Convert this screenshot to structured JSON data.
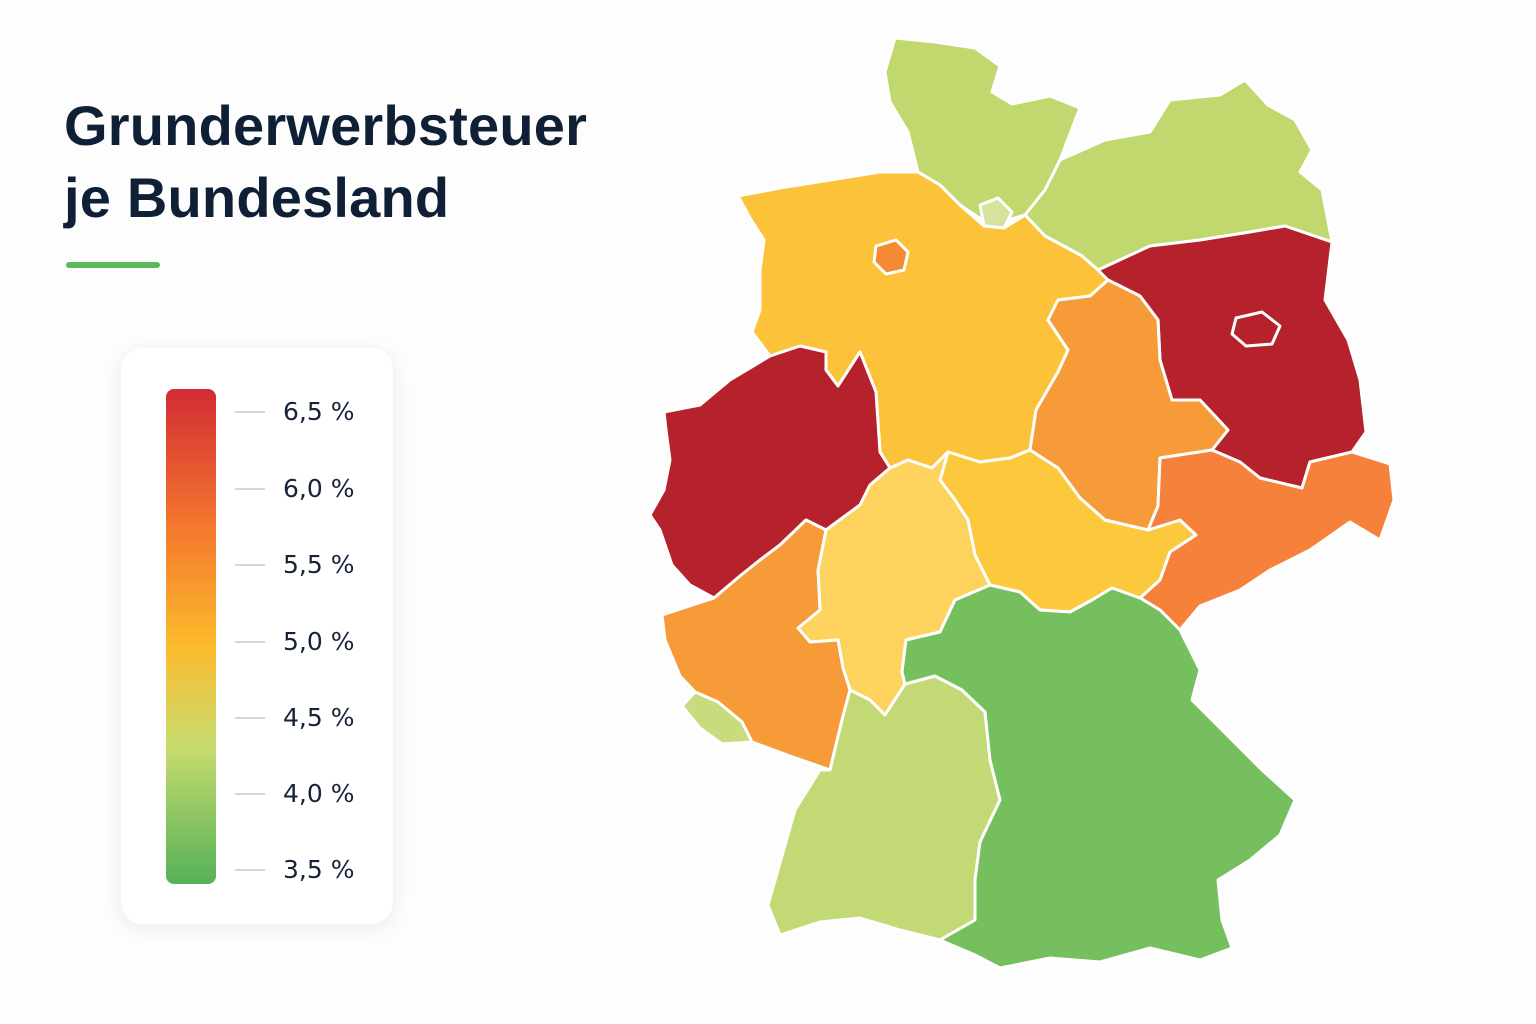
{
  "title": {
    "line1": "Grunderwerbsteuer",
    "line2": "je Bundesland"
  },
  "colors": {
    "title_text": "#0f1f35",
    "accent_line": "#5cb85c",
    "scale_top": "#d22b34",
    "scale_orange": "#f4782e",
    "scale_yellow": "#fcbb2c",
    "scale_light": "#c8dc6e",
    "scale_bottom": "#56b158"
  },
  "legend": {
    "labels": [
      "6,5 %",
      "6,0 %",
      "5,5 %",
      "5,0 %",
      "4,5 %",
      "4,0 %",
      "3,5 %"
    ]
  },
  "map": {
    "states": [
      {
        "name": "schleswig-holstein",
        "color": "#c0d86e"
      },
      {
        "name": "hamburg",
        "color": "#d5e49a"
      },
      {
        "name": "mecklenburg-vorpommern",
        "color": "#c0d86e"
      },
      {
        "name": "bremen",
        "color": "#f58a34"
      },
      {
        "name": "niedersachsen",
        "color": "#fcc33a"
      },
      {
        "name": "brandenburg",
        "color": "#b5222b"
      },
      {
        "name": "berlin",
        "color": "#b5222b"
      },
      {
        "name": "sachsen-anhalt",
        "color": "#f79a38"
      },
      {
        "name": "nordrhein-westfalen",
        "color": "#b5222b"
      },
      {
        "name": "thueringen",
        "color": "#fcc83c"
      },
      {
        "name": "sachsen",
        "color": "#f5813a"
      },
      {
        "name": "hessen",
        "color": "#fdd35e"
      },
      {
        "name": "rheinland-pfalz",
        "color": "#f79a38"
      },
      {
        "name": "saarland",
        "color": "#c8dc7e"
      },
      {
        "name": "baden-wuerttemberg",
        "color": "#c3d975"
      },
      {
        "name": "bayern",
        "color": "#75bf5f"
      }
    ]
  }
}
